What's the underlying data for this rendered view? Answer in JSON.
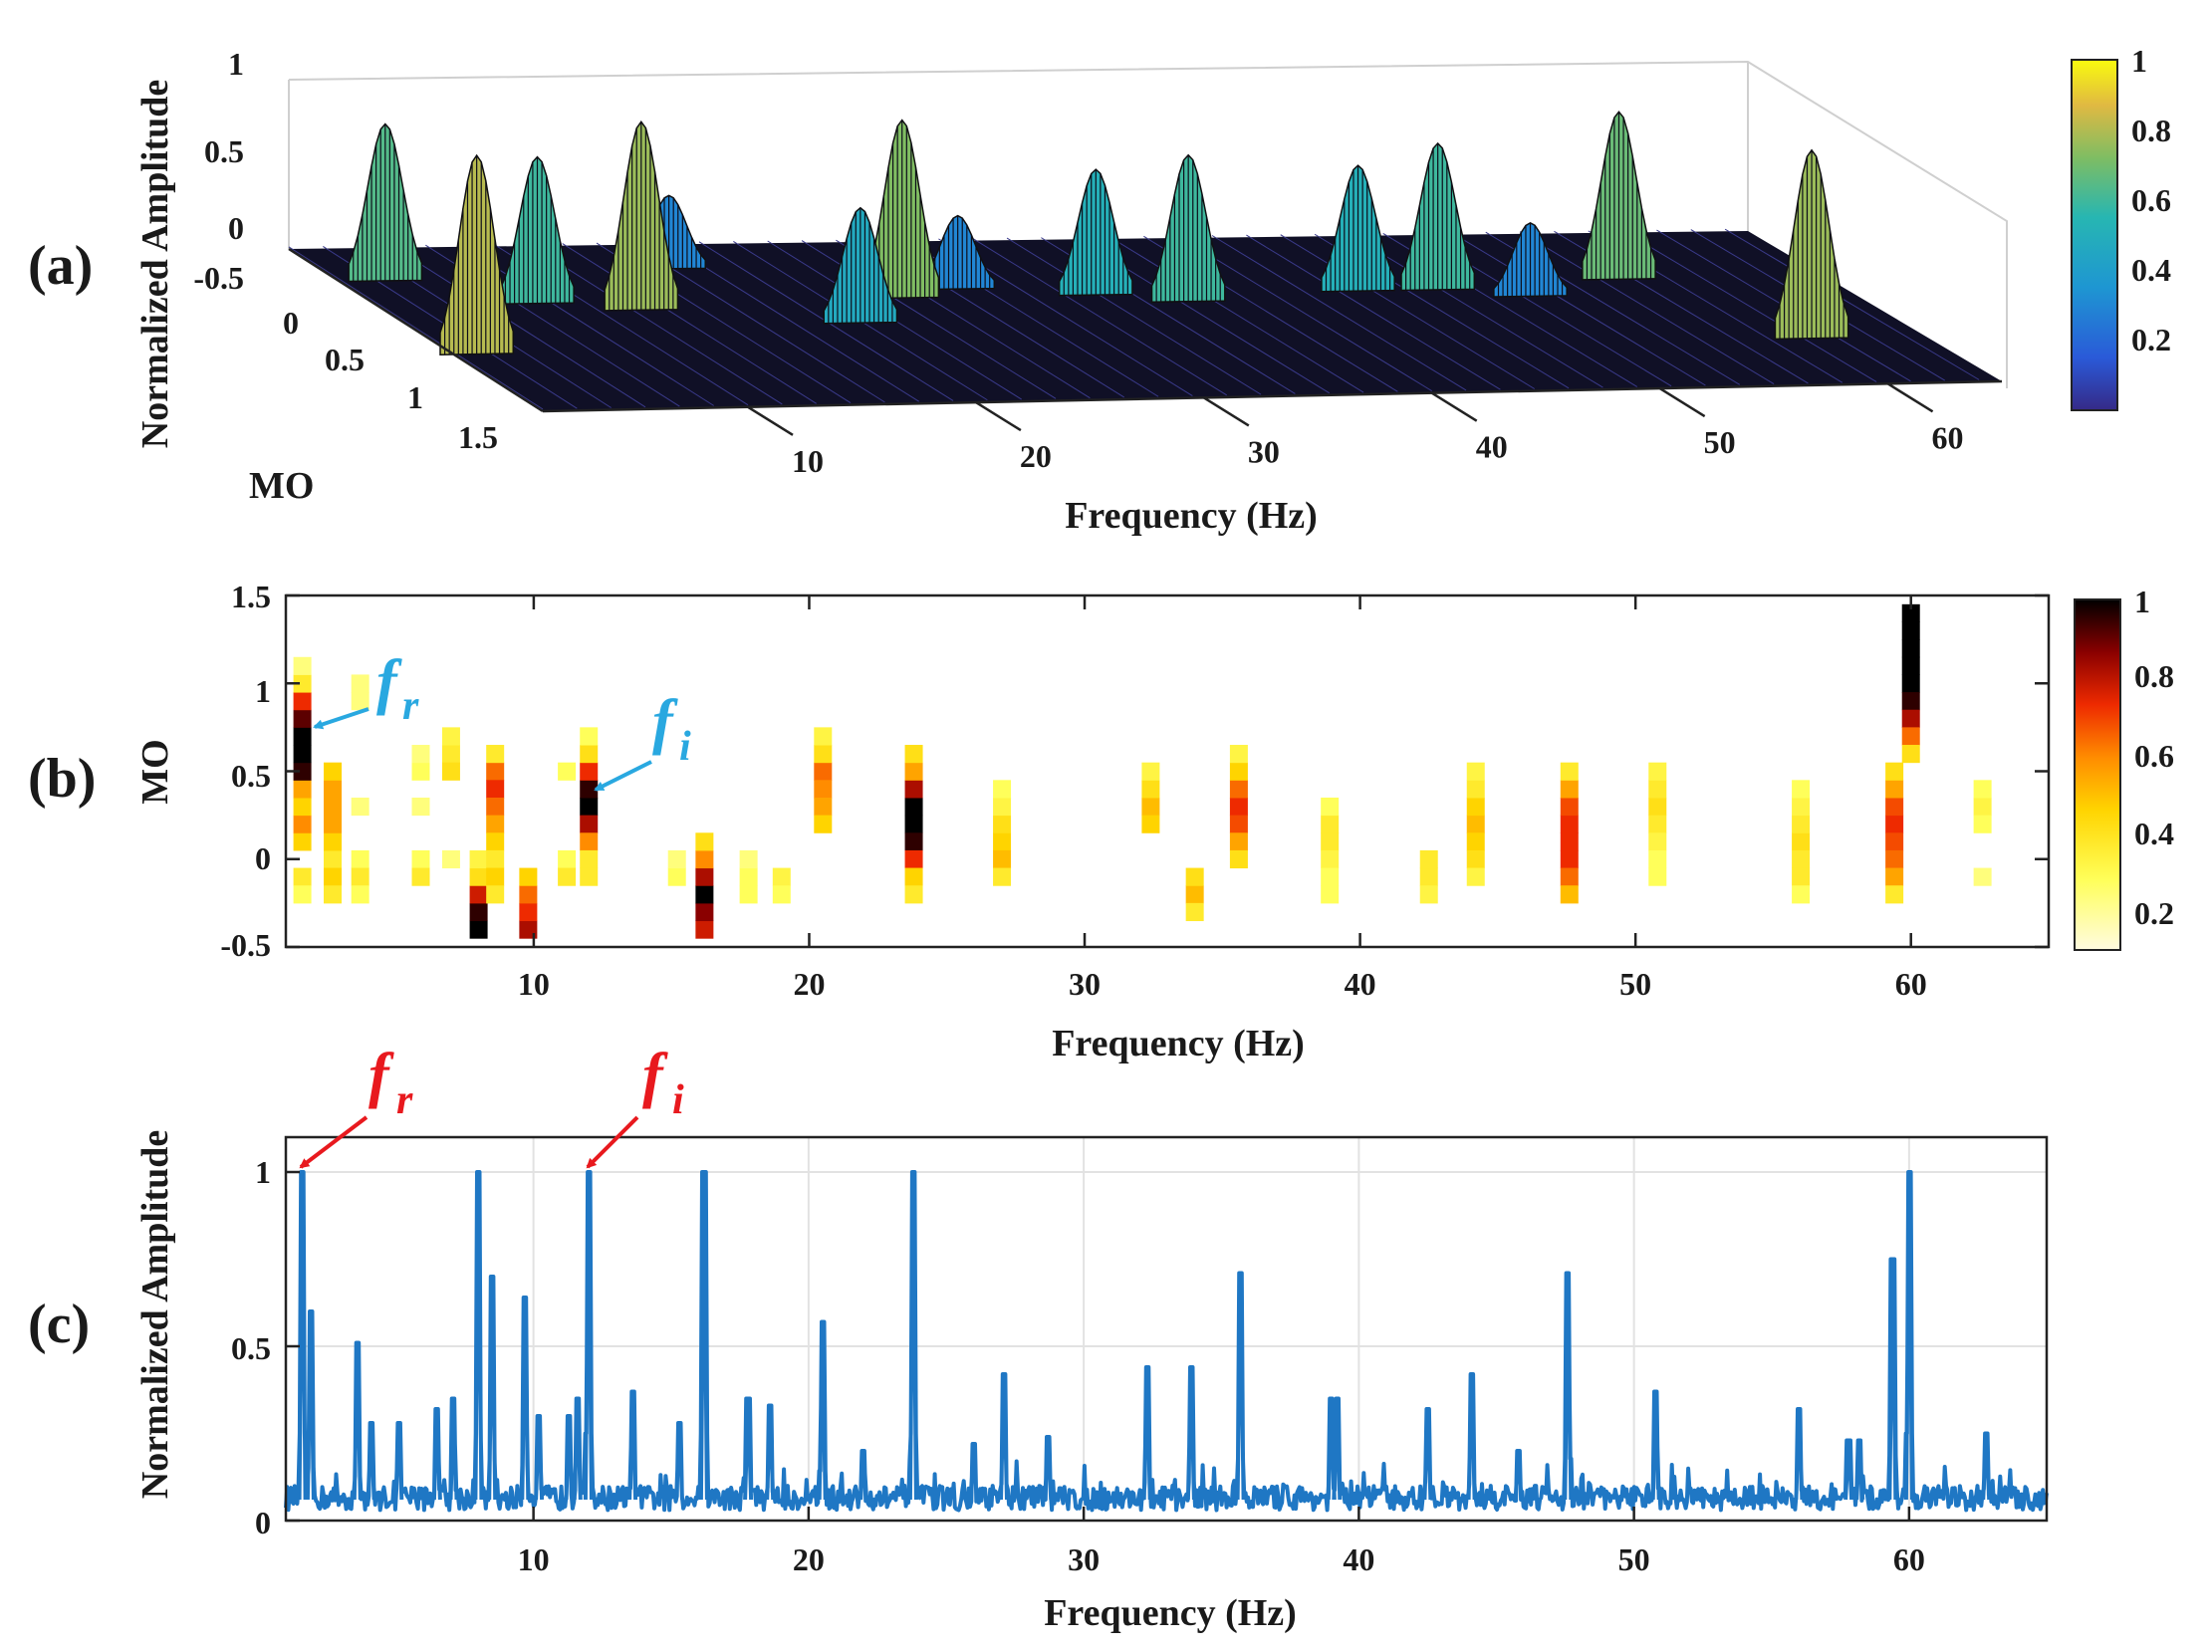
{
  "chart_data": [
    {
      "panel_label": "(a)",
      "type": "surface",
      "xlabel": "Frequency (Hz)",
      "ylabel": "MO",
      "zlabel": "Normalized Amplitude",
      "xticks": [
        "10",
        "20",
        "30",
        "40",
        "50",
        "60"
      ],
      "yticks": [
        "0",
        "0.5",
        "1",
        "1.5"
      ],
      "zticks": [
        "1",
        "0.5",
        "0",
        "-0.5"
      ],
      "xlim": [
        1,
        65
      ],
      "ylim": [
        -0.5,
        1.5
      ],
      "zlim": [
        -0.5,
        1
      ],
      "colormap": "parula",
      "colorbar_ticks": [
        "1",
        "0.8",
        "0.6",
        "0.4",
        "0.2"
      ],
      "ridges": [
        {
          "f": 2,
          "mo": 0.8,
          "amp": 0.95
        },
        {
          "f": 3,
          "mo": -0.1,
          "amp": 0.75
        },
        {
          "f": 8,
          "mo": 0.2,
          "amp": 0.7
        },
        {
          "f": 12,
          "mo": 0.3,
          "amp": 0.9
        },
        {
          "f": 16,
          "mo": -0.2,
          "amp": 0.35
        },
        {
          "f": 20.5,
          "mo": 0.5,
          "amp": 0.55
        },
        {
          "f": 24,
          "mo": 0.2,
          "amp": 0.85
        },
        {
          "f": 27,
          "mo": 0.1,
          "amp": 0.35
        },
        {
          "f": 32.5,
          "mo": 0.2,
          "amp": 0.6
        },
        {
          "f": 36,
          "mo": 0.3,
          "amp": 0.7
        },
        {
          "f": 44,
          "mo": 0.2,
          "amp": 0.6
        },
        {
          "f": 47.5,
          "mo": 0.2,
          "amp": 0.7
        },
        {
          "f": 51,
          "mo": 0.3,
          "amp": 0.35
        },
        {
          "f": 56,
          "mo": 0.1,
          "amp": 0.8
        },
        {
          "f": 60,
          "mo": 0.9,
          "amp": 0.9
        }
      ]
    },
    {
      "panel_label": "(b)",
      "type": "heatmap",
      "xlabel": "Frequency (Hz)",
      "ylabel": "MO",
      "xticks": [
        "10",
        "20",
        "30",
        "40",
        "50",
        "60"
      ],
      "yticks": [
        "1.5",
        "1",
        "0.5",
        "0",
        "-0.5"
      ],
      "xlim": [
        1,
        65
      ],
      "ylim": [
        -0.5,
        1.5
      ],
      "colormap": "hot (reversed)",
      "colorbar_ticks": [
        "1",
        "0.8",
        "0.6",
        "0.4",
        "0.2"
      ],
      "annotations": [
        {
          "symbol": "f",
          "subscript": "r",
          "f": 1.6,
          "mo": 0.8,
          "color": "#29a8e0"
        },
        {
          "symbol": "f",
          "subscript": "i",
          "f": 12,
          "mo": 0.4,
          "color": "#29a8e0"
        }
      ],
      "columns": [
        {
          "f": 1.6,
          "cells": [
            [
              0.1,
              0.4
            ],
            [
              0.2,
              0.55
            ],
            [
              0.3,
              0.4
            ],
            [
              0.4,
              0.5
            ],
            [
              0.5,
              0.95
            ],
            [
              0.6,
              1.0
            ],
            [
              0.7,
              1.0
            ],
            [
              0.8,
              0.9
            ],
            [
              0.9,
              0.7
            ],
            [
              1.0,
              0.3
            ],
            [
              1.1,
              0.15
            ],
            [
              -0.1,
              0.3
            ],
            [
              -0.2,
              0.2
            ]
          ]
        },
        {
          "f": 2.7,
          "cells": [
            [
              0.0,
              0.3
            ],
            [
              0.1,
              0.4
            ],
            [
              0.2,
              0.5
            ],
            [
              0.3,
              0.5
            ],
            [
              0.4,
              0.5
            ],
            [
              0.5,
              0.4
            ],
            [
              -0.1,
              0.4
            ],
            [
              -0.2,
              0.3
            ]
          ]
        },
        {
          "f": 3.7,
          "cells": [
            [
              0.0,
              0.2
            ],
            [
              -0.1,
              0.3
            ],
            [
              -0.2,
              0.2
            ],
            [
              0.3,
              0.15
            ],
            [
              0.9,
              0.15
            ],
            [
              1.0,
              0.15
            ]
          ]
        },
        {
          "f": 5.9,
          "cells": [
            [
              0.0,
              0.2
            ],
            [
              -0.1,
              0.3
            ],
            [
              0.3,
              0.15
            ],
            [
              0.5,
              0.2
            ],
            [
              0.6,
              0.15
            ]
          ]
        },
        {
          "f": 7.0,
          "cells": [
            [
              0.6,
              0.3
            ],
            [
              0.5,
              0.35
            ],
            [
              0.7,
              0.25
            ],
            [
              0.0,
              0.15
            ]
          ]
        },
        {
          "f": 8.0,
          "cells": [
            [
              -0.5,
              1.0
            ],
            [
              -0.4,
              1.0
            ],
            [
              -0.3,
              0.95
            ],
            [
              -0.2,
              0.75
            ],
            [
              -0.1,
              0.35
            ],
            [
              0.0,
              0.25
            ]
          ]
        },
        {
          "f": 8.6,
          "cells": [
            [
              0.5,
              0.6
            ],
            [
              0.4,
              0.7
            ],
            [
              0.3,
              0.6
            ],
            [
              0.2,
              0.5
            ],
            [
              0.1,
              0.4
            ],
            [
              0.0,
              0.3
            ],
            [
              -0.1,
              0.4
            ],
            [
              -0.2,
              0.3
            ],
            [
              0.6,
              0.3
            ]
          ]
        },
        {
          "f": 9.8,
          "cells": [
            [
              -0.5,
              0.9
            ],
            [
              -0.4,
              0.8
            ],
            [
              -0.3,
              0.7
            ],
            [
              -0.2,
              0.6
            ],
            [
              -0.1,
              0.4
            ]
          ]
        },
        {
          "f": 11.2,
          "cells": [
            [
              0.0,
              0.2
            ],
            [
              -0.1,
              0.3
            ],
            [
              0.5,
              0.2
            ]
          ]
        },
        {
          "f": 12.0,
          "cells": [
            [
              0.3,
              1.0
            ],
            [
              0.4,
              0.95
            ],
            [
              0.2,
              0.8
            ],
            [
              0.5,
              0.7
            ],
            [
              0.1,
              0.55
            ],
            [
              0.6,
              0.35
            ],
            [
              0.0,
              0.3
            ],
            [
              -0.1,
              0.3
            ],
            [
              0.7,
              0.2
            ]
          ]
        },
        {
          "f": 15.2,
          "cells": [
            [
              -0.1,
              0.2
            ],
            [
              0.0,
              0.15
            ]
          ]
        },
        {
          "f": 16.2,
          "cells": [
            [
              -0.5,
              0.7
            ],
            [
              -0.4,
              0.75
            ],
            [
              -0.3,
              0.85
            ],
            [
              -0.2,
              1.0
            ],
            [
              -0.1,
              0.8
            ],
            [
              0.0,
              0.55
            ],
            [
              0.1,
              0.35
            ]
          ]
        },
        {
          "f": 17.8,
          "cells": [
            [
              -0.1,
              0.2
            ],
            [
              -0.2,
              0.2
            ],
            [
              0.0,
              0.15
            ]
          ]
        },
        {
          "f": 19.0,
          "cells": [
            [
              -0.1,
              0.25
            ],
            [
              -0.2,
              0.2
            ]
          ]
        },
        {
          "f": 20.5,
          "cells": [
            [
              0.5,
              0.6
            ],
            [
              0.4,
              0.55
            ],
            [
              0.3,
              0.5
            ],
            [
              0.2,
              0.4
            ],
            [
              0.6,
              0.35
            ],
            [
              0.7,
              0.25
            ]
          ]
        },
        {
          "f": 23.8,
          "cells": [
            [
              0.2,
              1.0
            ],
            [
              0.3,
              1.0
            ],
            [
              0.1,
              0.95
            ],
            [
              0.4,
              0.8
            ],
            [
              0.0,
              0.7
            ],
            [
              0.5,
              0.5
            ],
            [
              -0.1,
              0.4
            ],
            [
              0.6,
              0.35
            ],
            [
              -0.2,
              0.3
            ]
          ]
        },
        {
          "f": 27.0,
          "cells": [
            [
              0.1,
              0.4
            ],
            [
              0.0,
              0.45
            ],
            [
              0.2,
              0.35
            ],
            [
              0.3,
              0.25
            ],
            [
              -0.1,
              0.3
            ],
            [
              0.4,
              0.2
            ]
          ]
        },
        {
          "f": 32.4,
          "cells": [
            [
              0.3,
              0.45
            ],
            [
              0.2,
              0.4
            ],
            [
              0.4,
              0.35
            ],
            [
              0.5,
              0.25
            ]
          ]
        },
        {
          "f": 34.0,
          "cells": [
            [
              -0.2,
              0.45
            ],
            [
              -0.1,
              0.35
            ],
            [
              -0.3,
              0.3
            ]
          ]
        },
        {
          "f": 35.6,
          "cells": [
            [
              0.3,
              0.7
            ],
            [
              0.2,
              0.65
            ],
            [
              0.4,
              0.6
            ],
            [
              0.1,
              0.5
            ],
            [
              0.5,
              0.4
            ],
            [
              0.0,
              0.35
            ],
            [
              0.6,
              0.25
            ]
          ]
        },
        {
          "f": 38.9,
          "cells": [
            [
              0.1,
              0.3
            ],
            [
              0.2,
              0.3
            ],
            [
              0.0,
              0.25
            ],
            [
              0.3,
              0.2
            ],
            [
              -0.1,
              0.2
            ],
            [
              -0.2,
              0.2
            ]
          ]
        },
        {
          "f": 42.5,
          "cells": [
            [
              -0.1,
              0.3
            ],
            [
              0.0,
              0.3
            ],
            [
              -0.2,
              0.25
            ]
          ]
        },
        {
          "f": 44.2,
          "cells": [
            [
              0.2,
              0.45
            ],
            [
              0.1,
              0.4
            ],
            [
              0.3,
              0.4
            ],
            [
              0.0,
              0.35
            ],
            [
              0.4,
              0.3
            ],
            [
              0.5,
              0.25
            ],
            [
              -0.1,
              0.25
            ]
          ]
        },
        {
          "f": 47.6,
          "cells": [
            [
              0.1,
              0.7
            ],
            [
              0.0,
              0.7
            ],
            [
              0.2,
              0.7
            ],
            [
              0.3,
              0.65
            ],
            [
              -0.1,
              0.6
            ],
            [
              0.4,
              0.5
            ],
            [
              -0.2,
              0.45
            ],
            [
              0.5,
              0.3
            ]
          ]
        },
        {
          "f": 50.8,
          "cells": [
            [
              0.3,
              0.35
            ],
            [
              0.2,
              0.3
            ],
            [
              0.4,
              0.3
            ],
            [
              0.1,
              0.25
            ],
            [
              0.5,
              0.25
            ],
            [
              0.0,
              0.2
            ],
            [
              -0.1,
              0.2
            ]
          ]
        },
        {
          "f": 56.0,
          "cells": [
            [
              0.1,
              0.35
            ],
            [
              0.0,
              0.3
            ],
            [
              0.2,
              0.3
            ],
            [
              -0.1,
              0.3
            ],
            [
              0.3,
              0.25
            ],
            [
              0.4,
              0.2
            ],
            [
              -0.2,
              0.2
            ]
          ]
        },
        {
          "f": 59.4,
          "cells": [
            [
              0.2,
              0.7
            ],
            [
              0.1,
              0.65
            ],
            [
              0.3,
              0.65
            ],
            [
              0.0,
              0.6
            ],
            [
              0.4,
              0.5
            ],
            [
              -0.1,
              0.5
            ],
            [
              0.5,
              0.35
            ],
            [
              -0.2,
              0.3
            ]
          ]
        },
        {
          "f": 60.0,
          "cells": [
            [
              1.5,
              1.0
            ],
            [
              1.4,
              1.0
            ],
            [
              1.3,
              1.0
            ],
            [
              1.2,
              1.0
            ],
            [
              1.1,
              1.0
            ],
            [
              1.0,
              1.0
            ],
            [
              0.9,
              0.95
            ],
            [
              0.8,
              0.8
            ],
            [
              0.7,
              0.6
            ],
            [
              0.6,
              0.35
            ]
          ]
        },
        {
          "f": 62.6,
          "cells": [
            [
              0.3,
              0.25
            ],
            [
              0.2,
              0.2
            ],
            [
              0.4,
              0.2
            ],
            [
              -0.1,
              0.15
            ]
          ]
        }
      ]
    },
    {
      "panel_label": "(c)",
      "type": "line",
      "xlabel": "Frequency (Hz)",
      "ylabel": "Normalized Amplitude",
      "xticks": [
        "10",
        "20",
        "30",
        "40",
        "50",
        "60"
      ],
      "yticks": [
        "1",
        "0.5",
        "0"
      ],
      "xlim": [
        1,
        65
      ],
      "ylim": [
        0,
        1.1
      ],
      "grid": true,
      "line_color": "#1f77c4",
      "annotations": [
        {
          "symbol": "f",
          "subscript": "r",
          "x": 1.6,
          "y": 1.0,
          "color": "#e8191e"
        },
        {
          "symbol": "f",
          "subscript": "i",
          "x": 12.0,
          "y": 1.0,
          "color": "#e8191e"
        }
      ],
      "peaks": [
        [
          1.6,
          1.0
        ],
        [
          1.9,
          0.6
        ],
        [
          3.6,
          0.51
        ],
        [
          4.1,
          0.28
        ],
        [
          5.1,
          0.28
        ],
        [
          6.5,
          0.32
        ],
        [
          7.1,
          0.35
        ],
        [
          8.0,
          1.0
        ],
        [
          8.5,
          0.7
        ],
        [
          9.7,
          0.64
        ],
        [
          10.2,
          0.3
        ],
        [
          11.3,
          0.3
        ],
        [
          11.6,
          0.35
        ],
        [
          12.0,
          1.0
        ],
        [
          13.6,
          0.37
        ],
        [
          15.3,
          0.28
        ],
        [
          16.2,
          1.0
        ],
        [
          17.8,
          0.35
        ],
        [
          18.6,
          0.33
        ],
        [
          20.5,
          0.57
        ],
        [
          22.0,
          0.2
        ],
        [
          23.8,
          1.0
        ],
        [
          26.0,
          0.22
        ],
        [
          27.1,
          0.42
        ],
        [
          28.7,
          0.24
        ],
        [
          32.3,
          0.44
        ],
        [
          33.9,
          0.44
        ],
        [
          35.7,
          0.71
        ],
        [
          39.0,
          0.35
        ],
        [
          39.2,
          0.35
        ],
        [
          42.5,
          0.32
        ],
        [
          44.1,
          0.42
        ],
        [
          45.8,
          0.2
        ],
        [
          47.6,
          0.71
        ],
        [
          50.8,
          0.37
        ],
        [
          56.0,
          0.32
        ],
        [
          57.8,
          0.23
        ],
        [
          58.2,
          0.23
        ],
        [
          59.4,
          0.75
        ],
        [
          60.0,
          1.0
        ],
        [
          62.8,
          0.25
        ]
      ]
    }
  ]
}
